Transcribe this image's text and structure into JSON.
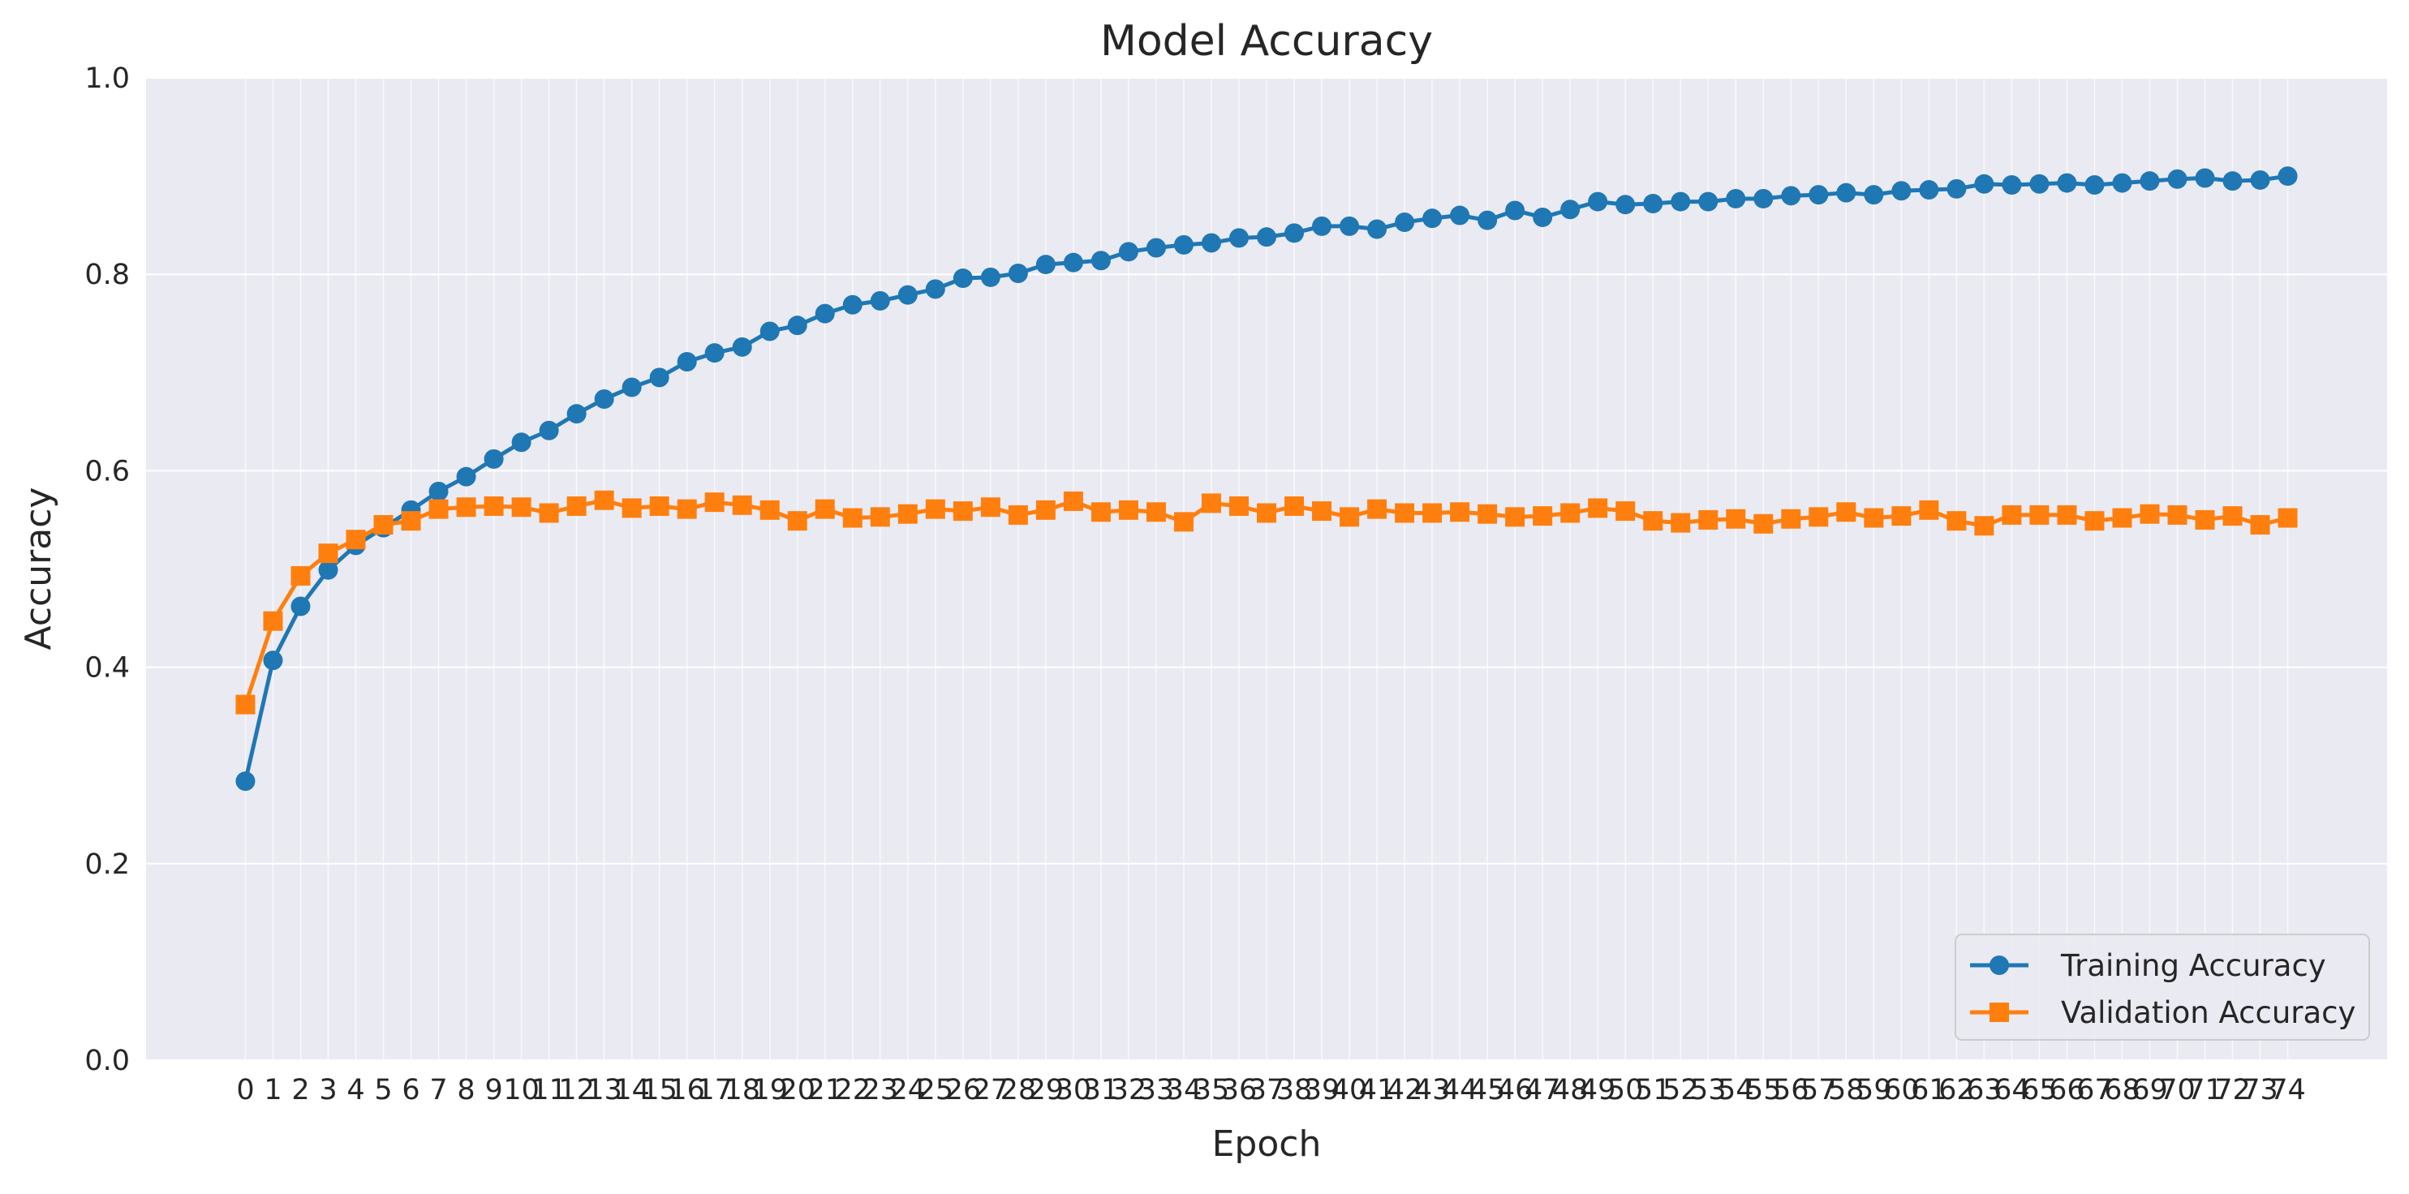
{
  "chart_data": {
    "type": "line",
    "title": "Model Accuracy",
    "xlabel": "Epoch",
    "ylabel": "Accuracy",
    "x": [
      0,
      1,
      2,
      3,
      4,
      5,
      6,
      7,
      8,
      9,
      10,
      11,
      12,
      13,
      14,
      15,
      16,
      17,
      18,
      19,
      20,
      21,
      22,
      23,
      24,
      25,
      26,
      27,
      28,
      29,
      30,
      31,
      32,
      33,
      34,
      35,
      36,
      37,
      38,
      39,
      40,
      41,
      42,
      43,
      44,
      45,
      46,
      47,
      48,
      49,
      50,
      51,
      52,
      53,
      54,
      55,
      56,
      57,
      58,
      59,
      60,
      61,
      62,
      63,
      64,
      65,
      66,
      67,
      68,
      69,
      70,
      71,
      72,
      73,
      74
    ],
    "x_ticks": [
      "0",
      "1",
      "2",
      "3",
      "4",
      "5",
      "6",
      "7",
      "8",
      "9",
      "10",
      "11",
      "12",
      "13",
      "14",
      "15",
      "16",
      "17",
      "18",
      "19",
      "20",
      "21",
      "22",
      "23",
      "24",
      "25",
      "26",
      "27",
      "28",
      "29",
      "30",
      "31",
      "32",
      "33",
      "34",
      "35",
      "36",
      "37",
      "38",
      "39",
      "40",
      "41",
      "42",
      "43",
      "44",
      "45",
      "46",
      "47",
      "48",
      "49",
      "50",
      "51",
      "52",
      "53",
      "54",
      "55",
      "56",
      "57",
      "58",
      "59",
      "60",
      "61",
      "62",
      "63",
      "64",
      "65",
      "66",
      "67",
      "68",
      "69",
      "70",
      "71",
      "72",
      "73",
      "74"
    ],
    "y_ticks": [
      "0.0",
      "0.2",
      "0.4",
      "0.6",
      "0.8",
      "1.0"
    ],
    "xlim": [
      -3.6,
      77.6
    ],
    "ylim": [
      0.0,
      1.0
    ],
    "grid": true,
    "legend_position": "bottom-right",
    "series": [
      {
        "name": "Training Accuracy",
        "marker": "circle",
        "color": "#1f77b4",
        "values": [
          0.284,
          0.407,
          0.462,
          0.499,
          0.524,
          0.542,
          0.56,
          0.579,
          0.594,
          0.612,
          0.629,
          0.641,
          0.658,
          0.673,
          0.685,
          0.695,
          0.711,
          0.72,
          0.726,
          0.742,
          0.748,
          0.76,
          0.769,
          0.773,
          0.779,
          0.785,
          0.796,
          0.797,
          0.801,
          0.81,
          0.812,
          0.814,
          0.823,
          0.827,
          0.83,
          0.832,
          0.837,
          0.838,
          0.842,
          0.849,
          0.849,
          0.846,
          0.853,
          0.857,
          0.86,
          0.855,
          0.865,
          0.858,
          0.866,
          0.874,
          0.871,
          0.872,
          0.874,
          0.874,
          0.877,
          0.877,
          0.88,
          0.881,
          0.883,
          0.881,
          0.885,
          0.886,
          0.887,
          0.892,
          0.891,
          0.892,
          0.893,
          0.891,
          0.893,
          0.895,
          0.897,
          0.898,
          0.895,
          0.896,
          0.9
        ]
      },
      {
        "name": "Validation Accuracy",
        "marker": "square",
        "color": "#ff7f0e",
        "values": [
          0.362,
          0.447,
          0.493,
          0.516,
          0.53,
          0.545,
          0.549,
          0.561,
          0.563,
          0.564,
          0.563,
          0.557,
          0.564,
          0.57,
          0.562,
          0.564,
          0.561,
          0.568,
          0.565,
          0.56,
          0.549,
          0.561,
          0.552,
          0.553,
          0.556,
          0.561,
          0.559,
          0.563,
          0.555,
          0.56,
          0.569,
          0.558,
          0.56,
          0.558,
          0.548,
          0.567,
          0.564,
          0.557,
          0.564,
          0.559,
          0.553,
          0.561,
          0.557,
          0.557,
          0.558,
          0.556,
          0.553,
          0.554,
          0.557,
          0.562,
          0.559,
          0.549,
          0.547,
          0.55,
          0.551,
          0.546,
          0.551,
          0.553,
          0.558,
          0.552,
          0.554,
          0.56,
          0.549,
          0.544,
          0.555,
          0.555,
          0.555,
          0.549,
          0.552,
          0.556,
          0.555,
          0.55,
          0.554,
          0.545,
          0.552
        ]
      }
    ]
  }
}
